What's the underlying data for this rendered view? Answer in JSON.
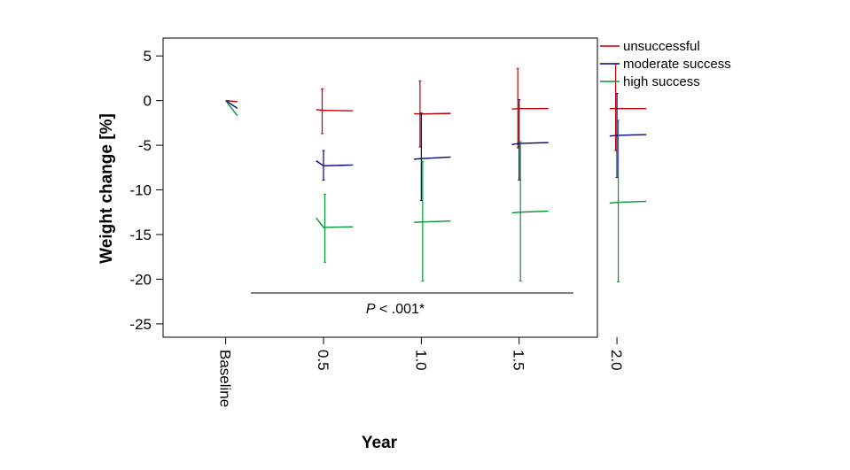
{
  "chart_data": {
    "type": "line",
    "xlabel": "Year",
    "ylabel": "Weight change [%]",
    "ylim": [
      -26.5,
      7
    ],
    "y_ticks": [
      5,
      0,
      -5,
      -10,
      -15,
      -20,
      -25
    ],
    "y_tick_labels": [
      "5",
      "0",
      "-5",
      "-10",
      "-15",
      "-20",
      "-25"
    ],
    "categories": [
      "Baseline",
      "0.5",
      "1.0",
      "1.5",
      "2.0"
    ],
    "x_ticks": [
      0,
      0.5,
      1.0,
      1.5,
      2.0
    ],
    "x_tick_labels": [
      "Baseline",
      "0.5",
      "1.0",
      "1.5",
      "2.0"
    ],
    "xlim": [
      -0.32,
      1.9
    ],
    "grid": false,
    "legend_position": "top-right",
    "series": [
      {
        "name": "unsuccessful",
        "color": "#c00000",
        "x": [
          0,
          0.5,
          1.0,
          1.5,
          2.0
        ],
        "values": [
          0,
          -1.1,
          -1.5,
          -0.9,
          -0.9
        ],
        "error_low": [
          0,
          -3.7,
          -5.2,
          -5.3,
          -5.6
        ],
        "error_high": [
          0,
          1.3,
          2.2,
          3.6,
          4.1
        ]
      },
      {
        "name": "moderate success",
        "color": "#000080",
        "x": [
          0,
          0.5,
          1.0,
          1.5,
          2.0
        ],
        "values": [
          0,
          -7.3,
          -6.5,
          -4.8,
          -3.9
        ],
        "error_low": [
          0,
          -8.9,
          -11.2,
          -8.9,
          -8.6
        ],
        "error_high": [
          0,
          -5.6,
          -1.4,
          0.1,
          0.8
        ]
      },
      {
        "name": "high success",
        "color": "#009933",
        "x": [
          0,
          0.5,
          1.0,
          1.5,
          2.0
        ],
        "values": [
          0,
          -14.2,
          -13.6,
          -12.5,
          -11.4
        ],
        "error_low": [
          0,
          -18.1,
          -20.2,
          -20.2,
          -20.3
        ],
        "error_high": [
          0,
          -10.5,
          -6.8,
          -4.6,
          -2.2
        ]
      }
    ],
    "annotation": {
      "italic_part": "P",
      "rest": " < .001*"
    }
  }
}
